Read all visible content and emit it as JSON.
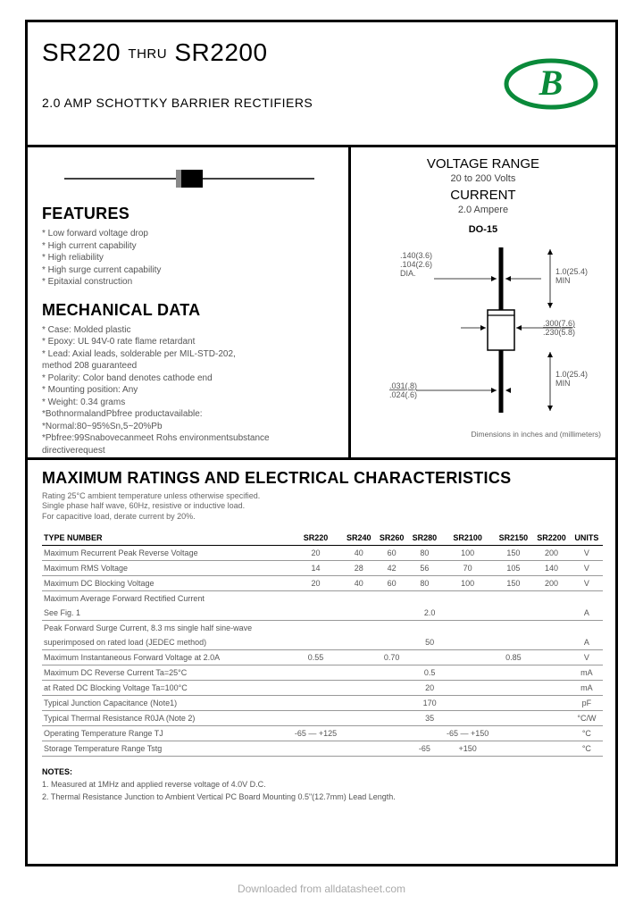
{
  "header": {
    "part_from": "SR220",
    "thru": "THRU",
    "part_to": "SR2200",
    "subtitle": "2.0 AMP SCHOTTKY BARRIER RECTIFIERS",
    "logo_color": "#0a8a3a",
    "logo_letter": "B"
  },
  "left": {
    "features_title": "FEATURES",
    "features": [
      "* Low forward voltage drop",
      "* High current capability",
      "* High reliability",
      "* High surge current capability",
      "* Epitaxial construction"
    ],
    "mech_title": "MECHANICAL DATA",
    "mechanical": [
      "* Case: Molded plastic",
      "* Epoxy: UL 94V-0 rate flame retardant",
      "* Lead: Axial leads, solderable per MIL-STD-202,",
      "  method 208 guaranteed",
      "* Polarity: Color band denotes cathode end",
      "* Mounting position: Any",
      "* Weight: 0.34 grams",
      "*BothnormalandPbfree productavailable:",
      "*Normal:80~95%Sn,5~20%Pb",
      "*Pbfree:99Snabovecanmeet Rohs environmentsubstance",
      "  directiverequest"
    ]
  },
  "right": {
    "vr_title": "VOLTAGE RANGE",
    "vr_value": "20 to 200 Volts",
    "cur_title": "CURRENT",
    "cur_value": "2.0 Ampere",
    "package": "DO-15",
    "dim_note": "Dimensions in inches and (millimeters)",
    "labels": {
      "dia1": ".140(3.6)",
      "dia2": ".104(2.6)",
      "dia3": "DIA.",
      "len1": "1.0(25.4)",
      "len2": "MIN",
      "body1": ".300(7.6)",
      "body2": ".230(5.8)",
      "lead1": ".031(.8)",
      "lead2": ".024(.6)"
    }
  },
  "ratings": {
    "title": "MAXIMUM RATINGS AND ELECTRICAL CHARACTERISTICS",
    "intro1": "Rating 25°C ambient temperature unless otherwise specified.",
    "intro2": "Single phase half wave, 60Hz, resistive or inductive load.",
    "intro3": "For capacitive load, derate current by 20%.",
    "columns": [
      "TYPE NUMBER",
      "SR220",
      "SR240",
      "SR260",
      "SR280",
      "SR2100",
      "SR2150",
      "SR2200",
      "UNITS"
    ],
    "rows": [
      {
        "label": "Maximum Recurrent Peak Reverse Voltage",
        "cells": [
          "20",
          "40",
          "60",
          "80",
          "100",
          "150",
          "200",
          "V"
        ],
        "span": false
      },
      {
        "label": "Maximum RMS Voltage",
        "cells": [
          "14",
          "28",
          "42",
          "56",
          "70",
          "105",
          "140",
          "V"
        ],
        "span": false
      },
      {
        "label": "Maximum DC Blocking Voltage",
        "cells": [
          "20",
          "40",
          "60",
          "80",
          "100",
          "150",
          "200",
          "V"
        ],
        "span": false
      },
      {
        "label": "Maximum Average Forward Rectified Current",
        "cells": [
          "",
          "",
          "",
          "",
          "",
          "",
          "",
          ""
        ],
        "span": false,
        "noborder": true
      },
      {
        "label": "See Fig. 1",
        "cells": [
          "2.0",
          "A"
        ],
        "span": true
      },
      {
        "label": "Peak Forward Surge Current, 8.3 ms single half sine-wave",
        "cells": [
          "",
          "",
          "",
          "",
          "",
          "",
          "",
          ""
        ],
        "span": false,
        "noborder": true
      },
      {
        "label": "superimposed on rated load (JEDEC method)",
        "cells": [
          "50",
          "A"
        ],
        "span": true
      },
      {
        "label": "Maximum Instantaneous Forward Voltage at 2.0A",
        "cells": [
          "0.55",
          "",
          "0.70",
          "",
          "",
          "0.85",
          "",
          "V"
        ],
        "span": false
      },
      {
        "label": "Maximum DC Reverse Current          Ta=25°C",
        "cells": [
          "0.5",
          "mA"
        ],
        "span": true
      },
      {
        "label": "at Rated DC Blocking Voltage          Ta=100°C",
        "cells": [
          "20",
          "mA"
        ],
        "span": true
      },
      {
        "label": "Typical Junction Capacitance (Note1)",
        "cells": [
          "170",
          "pF"
        ],
        "span": true
      },
      {
        "label": "Typical Thermal Resistance R0JA (Note 2)",
        "cells": [
          "35",
          "°C/W"
        ],
        "span": true
      },
      {
        "label": "Operating Temperature Range TJ",
        "cells": [
          "-65 — +125",
          "",
          "",
          "",
          "-65 — +150",
          "",
          "",
          "°C"
        ],
        "span": false
      },
      {
        "label": "Storage Temperature Range Tstg",
        "cells": [
          "",
          "",
          "",
          "-65",
          "+150",
          "",
          "",
          "°C"
        ],
        "span": false
      }
    ]
  },
  "notes": {
    "heading": "NOTES:",
    "n1": "1. Measured at 1MHz and applied reverse voltage of 4.0V D.C.",
    "n2": "2. Thermal Resistance Junction to Ambient Vertical PC Board Mounting 0.5\"(12.7mm) Lead Length."
  },
  "footer": "Downloaded from alldatasheet.com"
}
